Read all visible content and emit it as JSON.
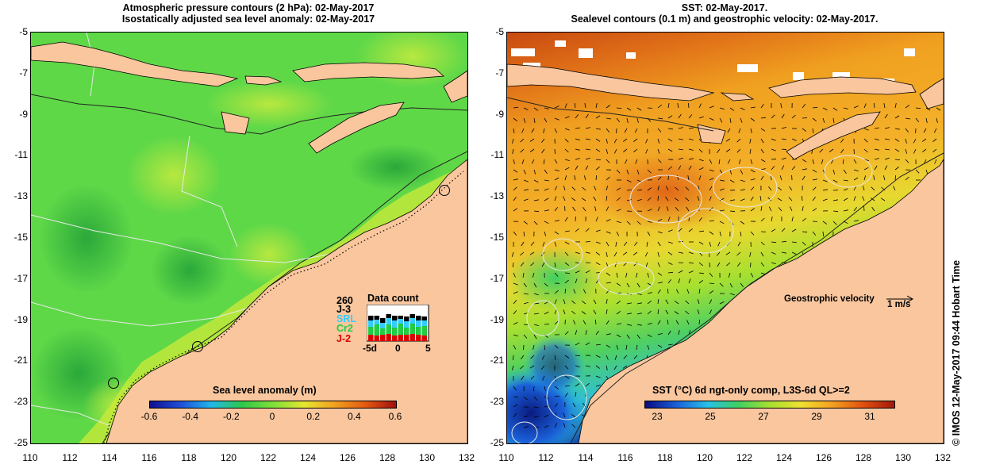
{
  "left_panel": {
    "title_line1": "Atmospheric pressure contours (2 hPa): 02-May-2017",
    "title_line2": "Isostatically adjusted sea level anomaly: 02-May-2017",
    "colorbar_title": "Sea level anomaly (m)",
    "colorbar_ticks": [
      "-0.6",
      "-0.4",
      "-0.2",
      "0",
      "0.2",
      "0.4",
      "0.6"
    ],
    "colorbar_colors": [
      "#10108f",
      "#1f4fd8",
      "#22b8e8",
      "#2ec84a",
      "#7fe03a",
      "#e6e630",
      "#f2a020",
      "#e45a10",
      "#a01010"
    ],
    "data_count": {
      "title": "Data count",
      "max_label": "260",
      "missions": [
        {
          "name": "J-3",
          "color": "#000000"
        },
        {
          "name": "SRL",
          "color": "#33ccff"
        },
        {
          "name": "Cr2",
          "color": "#22cc44"
        },
        {
          "name": "J-2",
          "color": "#dd0000"
        }
      ],
      "x_ticks": [
        "-5d",
        "0",
        "5"
      ]
    }
  },
  "right_panel": {
    "title_line1": "SST: 02-May-2017.",
    "title_line2": "Sealevel contours (0.1 m) and geostrophic velocity: 02-May-2017.",
    "colorbar_title": "SST (°C) 6d ngt-only comp, L3S-6d QL>=2",
    "colorbar_ticks": [
      "23",
      "25",
      "27",
      "29",
      "31"
    ],
    "colorbar_colors": [
      "#0a0a80",
      "#1a60d8",
      "#28c0e8",
      "#40d060",
      "#a8e030",
      "#f0e030",
      "#f4a020",
      "#e05010",
      "#a01808"
    ],
    "velocity_label": "Geostrophic velocity",
    "velocity_scale": "1 m/s"
  },
  "axes": {
    "x_ticks": [
      "110",
      "112",
      "114",
      "116",
      "118",
      "120",
      "122",
      "124",
      "126",
      "128",
      "130",
      "132"
    ],
    "y_ticks": [
      "-5",
      "-7",
      "-9",
      "-11",
      "-13",
      "-15",
      "-17",
      "-19",
      "-21",
      "-23",
      "-25"
    ],
    "lon_range": [
      110,
      132
    ],
    "lat_range": [
      -25,
      -5
    ]
  },
  "colors": {
    "land": "#f9c69e",
    "coastline": "#000000"
  },
  "credit": "© IMOS 12-May-2017 09:44 Hobart Time"
}
